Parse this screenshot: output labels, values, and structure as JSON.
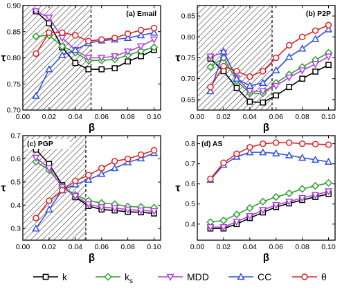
{
  "legend": {
    "items": [
      {
        "key": "k",
        "label": "k",
        "sub": "",
        "color": "#000000",
        "marker": "square"
      },
      {
        "key": "ks",
        "label": "k",
        "sub": "s",
        "color": "#2ca02c",
        "marker": "diamond"
      },
      {
        "key": "MDD",
        "label": "MDD",
        "sub": "",
        "color": "#b040e0",
        "marker": "triangle-down"
      },
      {
        "key": "CC",
        "label": "CC",
        "sub": "",
        "color": "#3050e0",
        "marker": "triangle-up"
      },
      {
        "key": "theta",
        "label": "θ",
        "sub": "",
        "color": "#e02020",
        "marker": "circle"
      }
    ]
  },
  "chart_data": [
    {
      "type": "line",
      "title": "(a) Email",
      "xlabel": "β",
      "ylabel": "τ",
      "xlim": [
        0.0,
        0.105
      ],
      "ylim": [
        0.7,
        0.9
      ],
      "xticks": [
        "0.00",
        "0.02",
        "0.04",
        "0.06",
        "0.08",
        "0.10"
      ],
      "xtick_values": [
        0.0,
        0.02,
        0.04,
        0.06,
        0.08,
        0.1
      ],
      "yticks": [
        "0.70",
        "0.75",
        "0.80",
        "0.85",
        "0.90"
      ],
      "ytick_values": [
        0.7,
        0.75,
        0.8,
        0.85,
        0.9
      ],
      "shaded_until": 0.052,
      "x": [
        0.01,
        0.02,
        0.03,
        0.04,
        0.05,
        0.06,
        0.07,
        0.08,
        0.09,
        0.1
      ],
      "series": [
        {
          "key": "k",
          "values": [
            0.889,
            0.866,
            0.82,
            0.79,
            0.778,
            0.778,
            0.78,
            0.793,
            0.803,
            0.815
          ]
        },
        {
          "key": "ks",
          "values": [
            0.841,
            0.843,
            0.822,
            0.81,
            0.795,
            0.795,
            0.797,
            0.805,
            0.813,
            0.82
          ]
        },
        {
          "key": "MDD",
          "values": [
            0.889,
            0.877,
            0.838,
            0.815,
            0.8,
            0.8,
            0.803,
            0.812,
            0.822,
            0.835
          ]
        },
        {
          "key": "CC",
          "values": [
            0.727,
            0.778,
            0.805,
            0.815,
            0.828,
            0.833,
            0.835,
            0.838,
            0.843,
            0.848
          ]
        },
        {
          "key": "theta",
          "values": [
            0.808,
            0.848,
            0.848,
            0.843,
            0.832,
            0.835,
            0.838,
            0.846,
            0.853,
            0.857
          ]
        }
      ]
    },
    {
      "type": "line",
      "title": "(b) P2P",
      "xlabel": "β",
      "ylabel": "τ",
      "xlim": [
        0.0,
        0.105
      ],
      "ylim": [
        0.625,
        0.875
      ],
      "xticks": [
        "0.00",
        "0.02",
        "0.04",
        "0.06",
        "0.08",
        "0.10"
      ],
      "xtick_values": [
        0.0,
        0.02,
        0.04,
        0.06,
        0.08,
        0.1
      ],
      "yticks": [
        "0.65",
        "0.70",
        "0.75",
        "0.80",
        "0.85"
      ],
      "ytick_values": [
        0.65,
        0.7,
        0.75,
        0.8,
        0.85
      ],
      "shaded_until": 0.057,
      "x": [
        0.01,
        0.02,
        0.03,
        0.04,
        0.05,
        0.06,
        0.07,
        0.08,
        0.09,
        0.1
      ],
      "series": [
        {
          "key": "k",
          "values": [
            0.748,
            0.718,
            0.678,
            0.645,
            0.643,
            0.66,
            0.68,
            0.7,
            0.717,
            0.733
          ]
        },
        {
          "key": "ks",
          "values": [
            0.728,
            0.75,
            0.695,
            0.665,
            0.665,
            0.69,
            0.71,
            0.728,
            0.745,
            0.762
          ]
        },
        {
          "key": "MDD",
          "values": [
            0.753,
            0.762,
            0.702,
            0.67,
            0.67,
            0.683,
            0.703,
            0.72,
            0.735,
            0.753
          ]
        },
        {
          "key": "CC",
          "values": [
            0.67,
            0.765,
            0.7,
            0.683,
            0.69,
            0.72,
            0.752,
            0.772,
            0.795,
            0.818
          ]
        },
        {
          "key": "theta",
          "values": [
            0.68,
            0.73,
            0.718,
            0.705,
            0.718,
            0.75,
            0.78,
            0.8,
            0.815,
            0.828
          ]
        }
      ]
    },
    {
      "type": "line",
      "title": "(c) PGP",
      "xlabel": "β",
      "ylabel": "τ",
      "xlim": [
        0.0,
        0.105
      ],
      "ylim": [
        0.25,
        0.7
      ],
      "xticks": [
        "0.00",
        "0.02",
        "0.04",
        "0.06",
        "0.08",
        "0.10"
      ],
      "xtick_values": [
        0.0,
        0.02,
        0.04,
        0.06,
        0.08,
        0.1
      ],
      "yticks": [
        "0.3",
        "0.4",
        "0.5",
        "0.6",
        "0.7"
      ],
      "ytick_values": [
        0.3,
        0.4,
        0.5,
        0.6,
        0.7
      ],
      "shaded_until": 0.048,
      "x": [
        0.01,
        0.02,
        0.03,
        0.04,
        0.05,
        0.06,
        0.07,
        0.08,
        0.09,
        0.1
      ],
      "series": [
        {
          "key": "k",
          "values": [
            0.64,
            0.578,
            0.487,
            0.435,
            0.397,
            0.382,
            0.378,
            0.372,
            0.37,
            0.365
          ]
        },
        {
          "key": "ks",
          "values": [
            0.588,
            0.552,
            0.482,
            0.445,
            0.42,
            0.41,
            0.405,
            0.395,
            0.393,
            0.39
          ]
        },
        {
          "key": "MDD",
          "values": [
            0.605,
            0.56,
            0.478,
            0.44,
            0.405,
            0.392,
            0.388,
            0.382,
            0.378,
            0.375
          ]
        },
        {
          "key": "CC",
          "values": [
            0.3,
            0.382,
            0.465,
            0.49,
            0.51,
            0.535,
            0.56,
            0.585,
            0.602,
            0.625
          ]
        },
        {
          "key": "theta",
          "values": [
            0.345,
            0.42,
            0.465,
            0.505,
            0.53,
            0.56,
            0.59,
            0.6,
            0.618,
            0.637
          ]
        }
      ]
    },
    {
      "type": "line",
      "title": "(d) AS",
      "xlabel": "β",
      "ylabel": "τ",
      "xlim": [
        0.0,
        0.105
      ],
      "ylim": [
        0.32,
        0.84
      ],
      "xticks": [
        "0.00",
        "0.02",
        "0.04",
        "0.06",
        "0.08",
        "0.10"
      ],
      "xtick_values": [
        0.0,
        0.02,
        0.04,
        0.06,
        0.08,
        0.1
      ],
      "yticks": [
        "0.4",
        "0.5",
        "0.6",
        "0.7",
        "0.8"
      ],
      "ytick_values": [
        0.4,
        0.5,
        0.6,
        0.7,
        0.8
      ],
      "shaded_until": 0,
      "x": [
        0.01,
        0.02,
        0.03,
        0.04,
        0.05,
        0.06,
        0.07,
        0.08,
        0.09,
        0.1
      ],
      "series": [
        {
          "key": "k",
          "values": [
            0.378,
            0.378,
            0.4,
            0.43,
            0.458,
            0.485,
            0.503,
            0.52,
            0.535,
            0.55
          ]
        },
        {
          "key": "ks",
          "values": [
            0.41,
            0.418,
            0.448,
            0.48,
            0.512,
            0.535,
            0.553,
            0.575,
            0.59,
            0.605
          ]
        },
        {
          "key": "MDD",
          "values": [
            0.385,
            0.385,
            0.412,
            0.44,
            0.47,
            0.495,
            0.512,
            0.53,
            0.545,
            0.563
          ]
        },
        {
          "key": "CC",
          "values": [
            0.62,
            0.695,
            0.735,
            0.757,
            0.757,
            0.752,
            0.742,
            0.73,
            0.72,
            0.71
          ]
        },
        {
          "key": "theta",
          "values": [
            0.625,
            0.705,
            0.75,
            0.782,
            0.8,
            0.805,
            0.805,
            0.8,
            0.798,
            0.795
          ]
        }
      ]
    }
  ]
}
